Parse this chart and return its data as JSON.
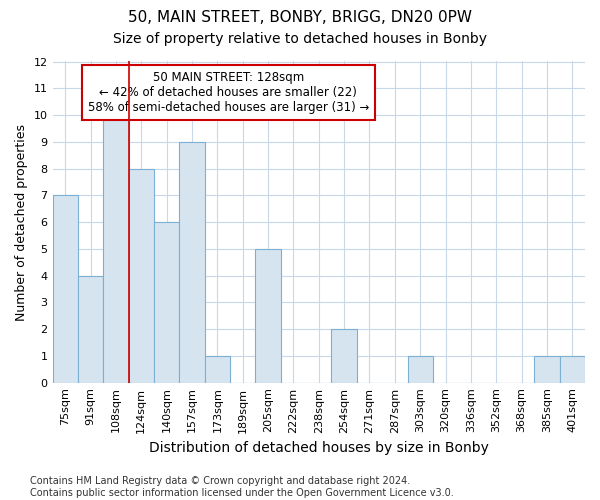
{
  "title": "50, MAIN STREET, BONBY, BRIGG, DN20 0PW",
  "subtitle": "Size of property relative to detached houses in Bonby",
  "xlabel": "Distribution of detached houses by size in Bonby",
  "ylabel": "Number of detached properties",
  "categories": [
    "75sqm",
    "91sqm",
    "108sqm",
    "124sqm",
    "140sqm",
    "157sqm",
    "173sqm",
    "189sqm",
    "205sqm",
    "222sqm",
    "238sqm",
    "254sqm",
    "271sqm",
    "287sqm",
    "303sqm",
    "320sqm",
    "336sqm",
    "352sqm",
    "368sqm",
    "385sqm",
    "401sqm"
  ],
  "values": [
    7,
    4,
    10,
    8,
    6,
    9,
    1,
    0,
    5,
    0,
    0,
    2,
    0,
    0,
    1,
    0,
    0,
    0,
    0,
    1,
    1
  ],
  "bar_color": "#d6e4f0",
  "bar_edge_color": "#7bafd4",
  "vline_index": 3,
  "vline_color": "#cc0000",
  "annotation_lines": [
    "50 MAIN STREET: 128sqm",
    "← 42% of detached houses are smaller (22)",
    "58% of semi-detached houses are larger (31) →"
  ],
  "annotation_box_color": "#cc0000",
  "ylim": [
    0,
    12
  ],
  "yticks": [
    0,
    1,
    2,
    3,
    4,
    5,
    6,
    7,
    8,
    9,
    10,
    11,
    12
  ],
  "footer": "Contains HM Land Registry data © Crown copyright and database right 2024.\nContains public sector information licensed under the Open Government Licence v3.0.",
  "background_color": "#ffffff",
  "grid_color": "#c8d8e8",
  "title_fontsize": 11,
  "subtitle_fontsize": 10,
  "tick_fontsize": 8,
  "ylabel_fontsize": 9,
  "xlabel_fontsize": 10,
  "footer_fontsize": 7,
  "ann_fontsize": 8.5
}
